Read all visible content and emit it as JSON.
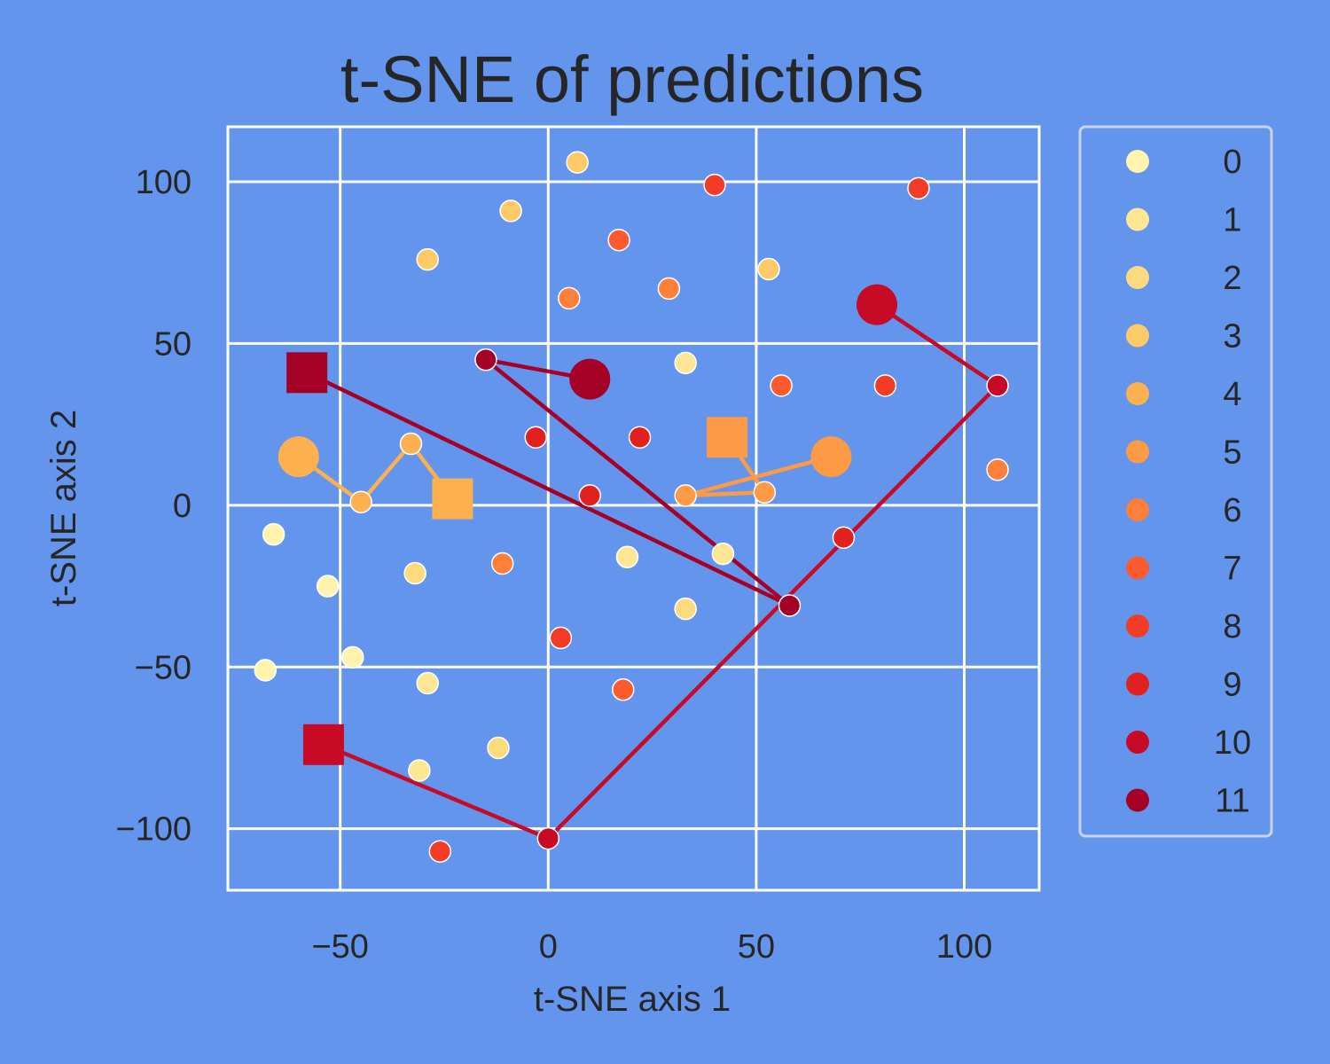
{
  "chart_data": {
    "type": "scatter",
    "title": "t-SNE of predictions",
    "xlabel": "t-SNE axis 1",
    "ylabel": "t-SNE axis 2",
    "xlim": [
      -77,
      118
    ],
    "ylim": [
      -119,
      117
    ],
    "xticks": [
      -50,
      0,
      50,
      100
    ],
    "yticks": [
      -100,
      -50,
      0,
      50,
      100
    ],
    "x_tick_labels": [
      "−50",
      "0",
      "50",
      "100"
    ],
    "y_tick_labels": [
      "−100",
      "−50",
      "0",
      "50",
      "100"
    ],
    "grid": true,
    "background": "#6495ED",
    "grid_color": "#FFFFFF",
    "legend_position": "right, outside plot",
    "series": [
      {
        "name": "0",
        "color": "#FFF3AE",
        "points": [
          [
            -66,
            -9
          ],
          [
            -53,
            -25
          ],
          [
            -47,
            -47
          ],
          [
            -68,
            -51
          ]
        ]
      },
      {
        "name": "1",
        "color": "#FEE794",
        "points": [
          [
            33,
            44
          ],
          [
            42,
            -15
          ],
          [
            19,
            -16
          ],
          [
            -29,
            -55
          ],
          [
            -31,
            -82
          ]
        ]
      },
      {
        "name": "2",
        "color": "#FEDA7E",
        "points": [
          [
            33,
            -32
          ],
          [
            -12,
            -75
          ],
          [
            -32,
            -21
          ]
        ]
      },
      {
        "name": "3",
        "color": "#FECA67",
        "points": [
          [
            7,
            106
          ],
          [
            -9,
            91
          ],
          [
            -29,
            76
          ],
          [
            53,
            73
          ]
        ]
      },
      {
        "name": "4",
        "color": "#FDB04F",
        "points": [
          [
            -33,
            19
          ],
          [
            -45,
            1
          ]
        ]
      },
      {
        "name": "5",
        "color": "#FD9A45",
        "points": [
          [
            33,
            3
          ],
          [
            52,
            4
          ]
        ]
      },
      {
        "name": "6",
        "color": "#FC7F3A",
        "points": [
          [
            5,
            64
          ],
          [
            29,
            67
          ],
          [
            -11,
            -18
          ],
          [
            108,
            11
          ]
        ]
      },
      {
        "name": "7",
        "color": "#FB5B2E",
        "points": [
          [
            17,
            82
          ],
          [
            56,
            37
          ],
          [
            18,
            -57
          ]
        ]
      },
      {
        "name": "8",
        "color": "#F23C25",
        "points": [
          [
            40,
            99
          ],
          [
            89,
            98
          ],
          [
            81,
            37
          ],
          [
            -26,
            -107
          ],
          [
            3,
            -41
          ]
        ]
      },
      {
        "name": "9",
        "color": "#E1211F",
        "points": [
          [
            -3,
            21
          ],
          [
            22,
            21
          ],
          [
            10,
            3
          ],
          [
            71,
            -10
          ]
        ]
      },
      {
        "name": "10",
        "color": "#C70A25",
        "points": [
          [
            108,
            37
          ],
          [
            0,
            -103
          ]
        ]
      },
      {
        "name": "11",
        "color": "#A50026",
        "points": [
          [
            -15,
            45
          ],
          [
            58,
            -31
          ]
        ]
      }
    ],
    "paths": [
      {
        "color": "#FDB04F",
        "start": [
          -60,
          15
        ],
        "end": [
          -23,
          2
        ],
        "points": [
          [
            -60,
            15
          ],
          [
            -45,
            1
          ],
          [
            -33,
            19
          ],
          [
            -23,
            2
          ]
        ]
      },
      {
        "color": "#FD9A45",
        "start": [
          68,
          15
        ],
        "end": [
          43,
          21
        ],
        "points": [
          [
            68,
            15
          ],
          [
            33,
            3
          ],
          [
            52,
            4
          ],
          [
            43,
            21
          ]
        ]
      },
      {
        "color": "#C70A25",
        "start": [
          79,
          62
        ],
        "end": [
          -54,
          -74
        ],
        "points": [
          [
            79,
            62
          ],
          [
            108,
            37
          ],
          [
            0,
            -103
          ],
          [
            -54,
            -74
          ]
        ]
      },
      {
        "color": "#A50026",
        "start": [
          10,
          39
        ],
        "end": [
          -58,
          41
        ],
        "points": [
          [
            10,
            39
          ],
          [
            -15,
            45
          ],
          [
            58,
            -31
          ],
          [
            -58,
            41
          ]
        ]
      }
    ]
  }
}
